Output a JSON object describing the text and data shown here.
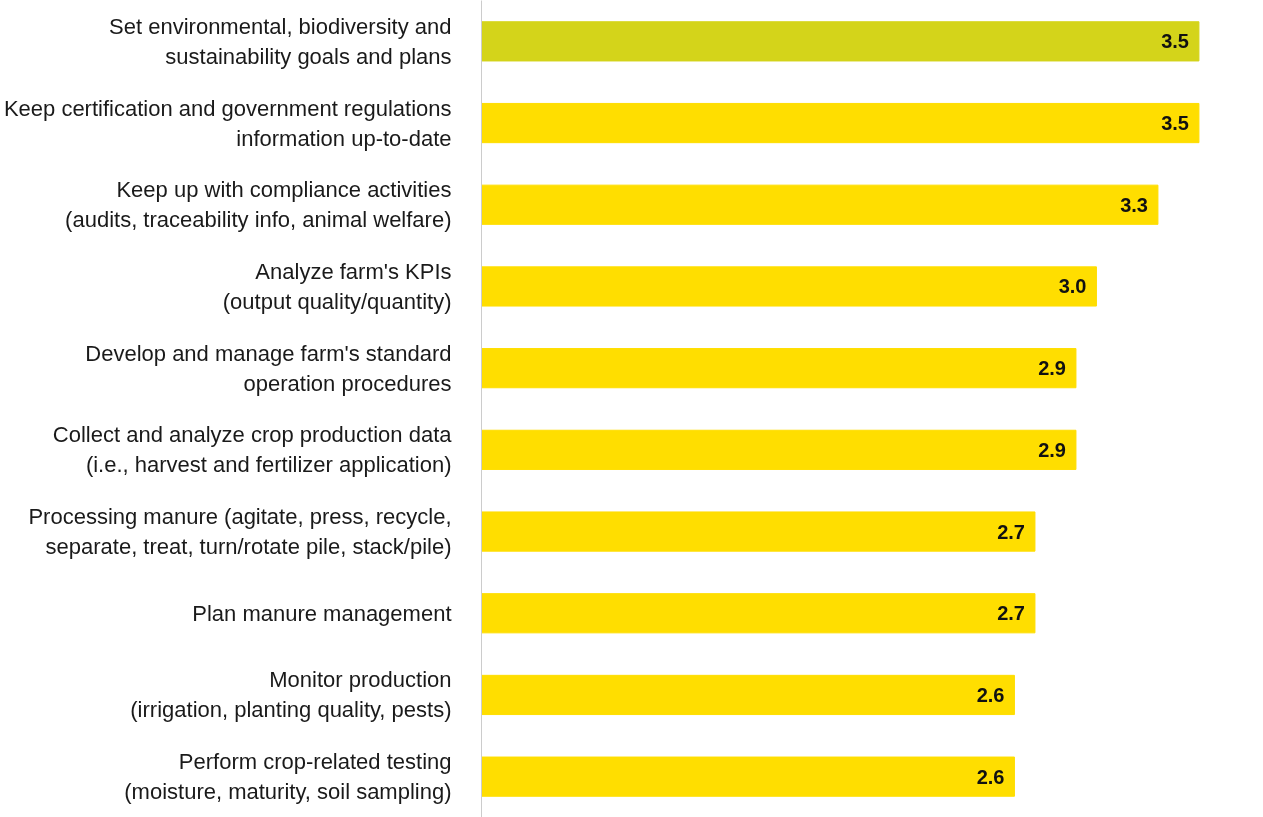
{
  "chart_data": {
    "type": "bar",
    "orientation": "horizontal",
    "categories": [
      "Set environmental, biodiversity and\nsustainability goals and plans",
      "Keep certification and government regulations\ninformation up-to-date",
      "Keep up with compliance activities\n(audits, traceability info, animal welfare)",
      "Analyze farm's KPIs\n(output quality/quantity)",
      "Develop and manage farm's standard\noperation procedures",
      "Collect and analyze crop production data\n(i.e., harvest and fertilizer application)",
      "Processing manure (agitate, press, recycle,\nseparate, treat, turn/rotate pile, stack/pile)",
      "Plan manure management",
      "Monitor production\n(irrigation, planting quality, pests)",
      "Perform crop-related testing\n(moisture, maturity, soil sampling)"
    ],
    "values": [
      3.5,
      3.5,
      3.3,
      3.0,
      2.9,
      2.9,
      2.7,
      2.7,
      2.6,
      2.6
    ],
    "value_labels": [
      "3.5",
      "3.5",
      "3.3",
      "3.0",
      "2.9",
      "2.9",
      "2.7",
      "2.7",
      "2.6",
      "2.6"
    ],
    "colors": [
      "#d4d41a",
      "#ffde00",
      "#ffde00",
      "#ffde00",
      "#ffde00",
      "#ffde00",
      "#ffde00",
      "#ffde00",
      "#ffde00",
      "#ffde00"
    ],
    "tick_labels": "y",
    "grid": false
  }
}
